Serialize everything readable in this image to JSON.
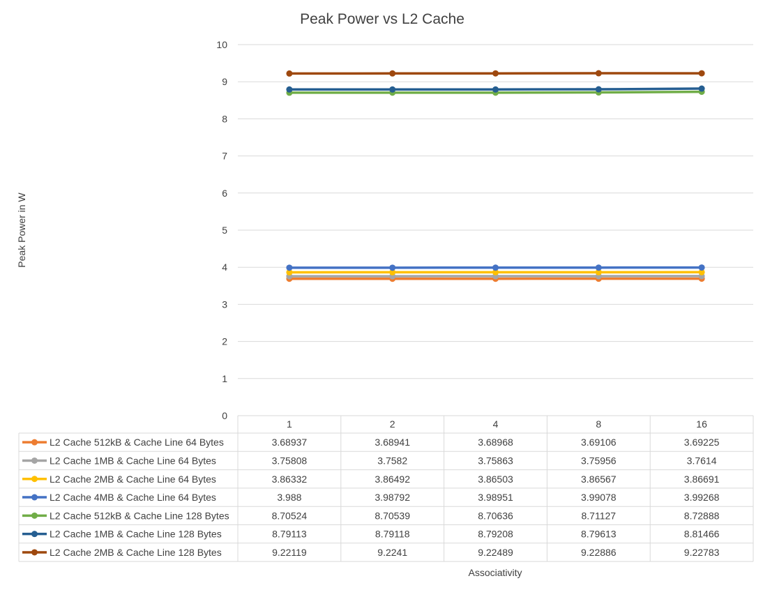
{
  "chart_data": {
    "type": "line",
    "title": "Peak Power vs L2 Cache",
    "xlabel": "Associativity",
    "ylabel": "Peak Power in W",
    "ylim": [
      0,
      10
    ],
    "yticks": [
      0,
      1,
      2,
      3,
      4,
      5,
      6,
      7,
      8,
      9,
      10
    ],
    "grid": true,
    "legend_placement": "data-table",
    "categories": [
      "1",
      "2",
      "4",
      "8",
      "16"
    ],
    "series": [
      {
        "name": "L2 Cache 512kB & Cache Line 64 Bytes",
        "color": "#ED7D31",
        "values": [
          3.68937,
          3.68941,
          3.68968,
          3.69106,
          3.69225
        ],
        "labels": [
          "3.68937",
          "3.68941",
          "3.68968",
          "3.69106",
          "3.69225"
        ]
      },
      {
        "name": "L2 Cache 1MB & Cache Line 64 Bytes",
        "color": "#A5A5A5",
        "values": [
          3.75808,
          3.7582,
          3.75863,
          3.75956,
          3.7614
        ],
        "labels": [
          "3.75808",
          "3.7582",
          "3.75863",
          "3.75956",
          "3.7614"
        ]
      },
      {
        "name": "L2 Cache 2MB & Cache Line 64 Bytes",
        "color": "#FFC000",
        "values": [
          3.86332,
          3.86492,
          3.86503,
          3.86567,
          3.86691
        ],
        "labels": [
          "3.86332",
          "3.86492",
          "3.86503",
          "3.86567",
          "3.86691"
        ]
      },
      {
        "name": "L2 Cache 4MB & Cache Line 64 Bytes",
        "color": "#4472C4",
        "values": [
          3.988,
          3.98792,
          3.98951,
          3.99078,
          3.99268
        ],
        "labels": [
          "3.988",
          "3.98792",
          "3.98951",
          "3.99078",
          "3.99268"
        ]
      },
      {
        "name": "L2 Cache 512kB & Cache Line 128 Bytes",
        "color": "#70AD47",
        "values": [
          8.70524,
          8.70539,
          8.70636,
          8.71127,
          8.72888
        ],
        "labels": [
          "8.70524",
          "8.70539",
          "8.70636",
          "8.71127",
          "8.72888"
        ]
      },
      {
        "name": "L2 Cache 1MB & Cache Line 128 Bytes",
        "color": "#255E91",
        "values": [
          8.79113,
          8.79118,
          8.79208,
          8.79613,
          8.81466
        ],
        "labels": [
          "8.79113",
          "8.79118",
          "8.79208",
          "8.79613",
          "8.81466"
        ]
      },
      {
        "name": "L2 Cache 2MB & Cache Line 128 Bytes",
        "color": "#9E480E",
        "values": [
          9.22119,
          9.2241,
          9.22489,
          9.22886,
          9.22783
        ],
        "labels": [
          "9.22119",
          "9.2241",
          "9.22489",
          "9.22886",
          "9.22783"
        ]
      }
    ]
  }
}
